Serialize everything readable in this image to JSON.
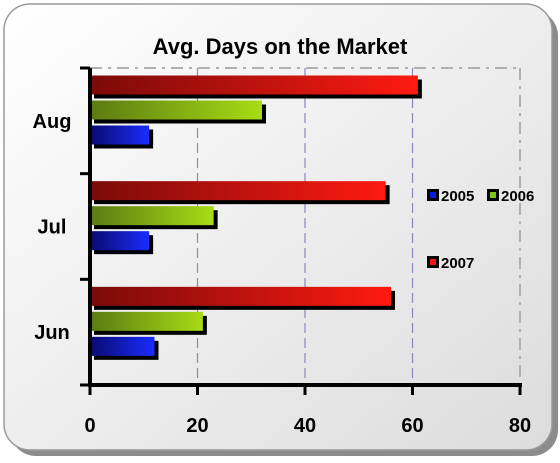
{
  "chart_data": {
    "type": "bar",
    "orientation": "horizontal",
    "title": "Avg. Days on the Market",
    "categories": [
      "Aug",
      "Jul",
      "Jun"
    ],
    "series": [
      {
        "name": "2005",
        "color": "#0a1cd6",
        "values": [
          11,
          11,
          12
        ]
      },
      {
        "name": "2006",
        "color": "#7fc21a",
        "values": [
          32,
          23,
          21
        ]
      },
      {
        "name": "2007",
        "color": "#f2140c",
        "values": [
          61,
          55,
          56
        ]
      }
    ],
    "x_ticks": [
      "0",
      "20",
      "40",
      "60",
      "80"
    ],
    "xlim": [
      0,
      80
    ],
    "grid": true,
    "legend_position": "right"
  }
}
